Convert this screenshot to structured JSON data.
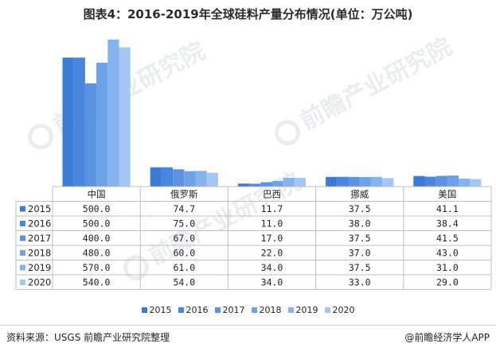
{
  "title": "图表4：2016-2019年全球硅料产量分布情况(单位：万公吨)",
  "source": "资料来源：USGS 前瞻产业研究院整理",
  "brand": "@前瞻经济学人APP",
  "watermark": "前瞻产业研究院",
  "chart_data": {
    "type": "bar",
    "categories": [
      "中国",
      "俄罗斯",
      "巴西",
      "挪威",
      "美国"
    ],
    "series": [
      {
        "name": "2015",
        "values": [
          500.0,
          74.7,
          11.7,
          37.5,
          41.1
        ],
        "color": "#3a7bd5",
        "display": [
          "500.0",
          "74.7",
          "11.7",
          "37.5",
          "41.1"
        ]
      },
      {
        "name": "2016",
        "values": [
          500.0,
          75.0,
          11.0,
          38.0,
          38.4
        ],
        "color": "#4a86dd",
        "display": [
          "500.0",
          "75.0",
          "11.0",
          "38.0",
          "38.4"
        ]
      },
      {
        "name": "2017",
        "values": [
          400.0,
          67.0,
          17.0,
          37.5,
          41.5
        ],
        "color": "#5b93e2",
        "display": [
          "400.0",
          "67.0",
          "17.0",
          "37.5",
          "41.5"
        ]
      },
      {
        "name": "2018",
        "values": [
          480.0,
          60.0,
          22.0,
          37.0,
          43.0
        ],
        "color": "#6ea2e8",
        "display": [
          "480.0",
          "60.0",
          "22.0",
          "37.0",
          "43.0"
        ]
      },
      {
        "name": "2019",
        "values": [
          570.0,
          61.0,
          34.0,
          37.5,
          31.0
        ],
        "color": "#85b3ee",
        "display": [
          "570.0",
          "61.0",
          "34.0",
          "37.5",
          "31.0"
        ]
      },
      {
        "name": "2020",
        "values": [
          540.0,
          54.0,
          34.0,
          33.0,
          29.0
        ],
        "color": "#a3c6f3",
        "display": [
          "540.0",
          "54.0",
          "34.0",
          "33.0",
          "29.0"
        ]
      }
    ],
    "ylim": [
      0,
      600
    ],
    "grid": false,
    "legend": "bottom-center"
  }
}
